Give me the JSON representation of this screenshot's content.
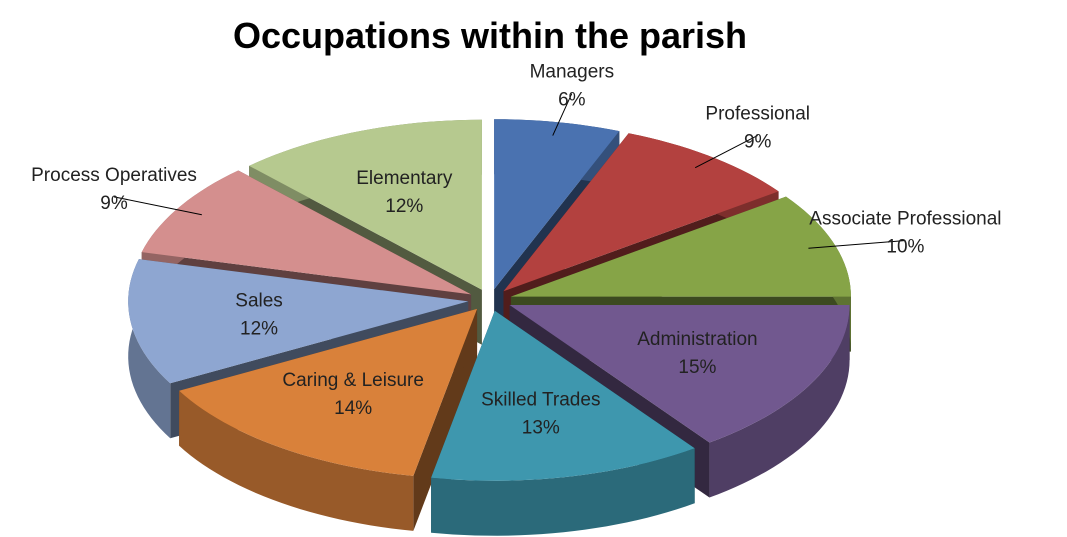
{
  "chart_data": {
    "type": "pie",
    "title": "Occupations within the parish",
    "categories": [
      "Managers",
      "Professional",
      "Associate Professional",
      "Administration",
      "Skilled Trades",
      "Caring & Leisure",
      "Sales",
      "Process Operatives",
      "Elementary"
    ],
    "values": [
      6,
      9,
      10,
      15,
      13,
      14,
      12,
      9,
      12
    ],
    "value_labels": [
      "6%",
      "9%",
      "10%",
      "15%",
      "13%",
      "14%",
      "12%",
      "9%",
      "12%"
    ],
    "colors": [
      "#4a72b0",
      "#b3413f",
      "#86a447",
      "#71588f",
      "#3e97ae",
      "#d9813a",
      "#8ea6d1",
      "#d48f8e",
      "#b6c98f"
    ]
  }
}
